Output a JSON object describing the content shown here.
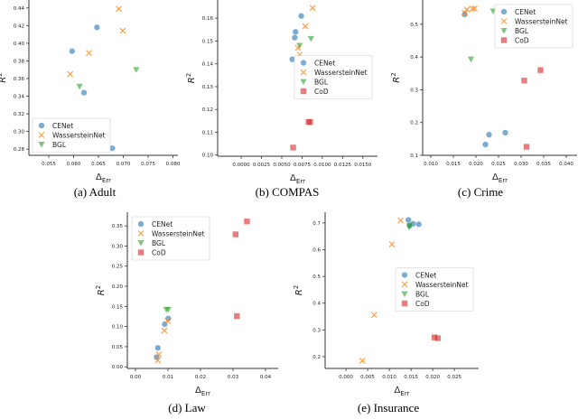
{
  "legend_names": {
    "CENet": "CENet",
    "WassersteinNet": "WassersteinNet",
    "BGL": "BGL",
    "CoD": "CoD"
  },
  "colors": {
    "CENet": "#1f77b4",
    "WassersteinNet": "#ff7f0e",
    "BGL": "#2ca02c",
    "CoD": "#d62728"
  },
  "markers": {
    "CENet": "circle",
    "WassersteinNet": "x",
    "BGL": "triangle-down",
    "CoD": "square"
  },
  "chart_data": [
    {
      "type": "scatter",
      "caption": "(a) Adult",
      "xlabel_main": "Δ",
      "xlabel_sub": "Err",
      "ylabel_main": "R",
      "ylabel_sup": "2",
      "xlim": [
        0.051,
        0.081
      ],
      "ylim": [
        0.273,
        0.449
      ],
      "xticks": [
        "0.055",
        "0.060",
        "0.065",
        "0.070",
        "0.075",
        "0.080"
      ],
      "yticks": [
        "0.28",
        "0.30",
        "0.32",
        "0.34",
        "0.36",
        "0.38",
        "0.40",
        "0.42",
        "0.44"
      ],
      "legend": "lower-left",
      "grid": false,
      "series": [
        {
          "name": "CENet",
          "points": [
            [
              0.0647,
              0.418
            ],
            [
              0.0597,
              0.391
            ],
            [
              0.0621,
              0.344
            ],
            [
              0.0678,
              0.281
            ]
          ]
        },
        {
          "name": "WassersteinNet",
          "points": [
            [
              0.0691,
              0.439
            ],
            [
              0.0699,
              0.414
            ],
            [
              0.0631,
              0.389
            ],
            [
              0.0593,
              0.365
            ]
          ]
        },
        {
          "name": "BGL",
          "points": [
            [
              0.0726,
              0.37
            ],
            [
              0.0612,
              0.351
            ]
          ]
        }
      ]
    },
    {
      "type": "scatter",
      "caption": "(b) COMPAS",
      "xlabel_main": "Δ",
      "xlabel_sub": "Err",
      "ylabel_main": "R",
      "ylabel_sup": "2",
      "xlim": [
        -0.0029,
        0.0168
      ],
      "ylim": [
        0.0995,
        0.168
      ],
      "xticks": [
        "0.0000",
        "0.0025",
        "0.0050",
        "0.0075",
        "0.0100",
        "0.0125",
        "0.0150"
      ],
      "yticks": [
        "0.10",
        "0.11",
        "0.12",
        "0.13",
        "0.14",
        "0.15",
        "0.16"
      ],
      "legend": "center-right",
      "grid": false,
      "series": [
        {
          "name": "CENet",
          "points": [
            [
              0.0074,
              0.161
            ],
            [
              0.0067,
              0.154
            ],
            [
              0.0066,
              0.1515
            ],
            [
              0.0063,
              0.142
            ]
          ]
        },
        {
          "name": "WassersteinNet",
          "points": [
            [
              0.0088,
              0.1645
            ],
            [
              0.0079,
              0.1565
            ],
            [
              0.007,
              0.147
            ],
            [
              0.0072,
              0.144
            ]
          ]
        },
        {
          "name": "BGL",
          "points": [
            [
              0.0086,
              0.151
            ],
            [
              0.0072,
              0.148
            ]
          ]
        },
        {
          "name": "CoD",
          "points": [
            [
              0.0085,
              0.1145
            ],
            [
              0.0083,
              0.1145
            ],
            [
              0.0064,
              0.1033
            ]
          ]
        }
      ]
    },
    {
      "type": "scatter",
      "caption": "(c) Crime",
      "xlabel_main": "Δ",
      "xlabel_sub": "Err",
      "ylabel_main": "R",
      "ylabel_sup": "2",
      "xlim": [
        0.0082,
        0.0424
      ],
      "ylim": [
        0.1,
        0.574
      ],
      "xticks": [
        "0.010",
        "0.015",
        "0.020",
        "0.025",
        "0.030",
        "0.035",
        "0.040"
      ],
      "yticks": [
        "0.1",
        "0.2",
        "0.3",
        "0.4",
        "0.5"
      ],
      "legend": "upper-right",
      "grid": false,
      "series": [
        {
          "name": "CENet",
          "points": [
            [
              0.0175,
              0.53
            ],
            [
              0.0221,
              0.133
            ],
            [
              0.0229,
              0.163
            ],
            [
              0.0265,
              0.169
            ]
          ]
        },
        {
          "name": "WassersteinNet",
          "points": [
            [
              0.0175,
              0.535
            ],
            [
              0.018,
              0.545
            ],
            [
              0.0192,
              0.547
            ],
            [
              0.0197,
              0.548
            ]
          ]
        },
        {
          "name": "BGL",
          "points": [
            [
              0.0238,
              0.54
            ],
            [
              0.0189,
              0.393
            ]
          ]
        },
        {
          "name": "CoD",
          "points": [
            [
              0.0343,
              0.36
            ],
            [
              0.0307,
              0.328
            ],
            [
              0.0312,
              0.126
            ]
          ]
        }
      ]
    },
    {
      "type": "scatter",
      "caption": "(d) Law",
      "xlabel_main": "Δ",
      "xlabel_sub": "Err",
      "ylabel_main": "R",
      "ylabel_sup": "2",
      "xlim": [
        -0.0025,
        0.0439
      ],
      "ylim": [
        -0.004,
        0.384
      ],
      "xticks": [
        "0.00",
        "0.01",
        "0.02",
        "0.03",
        "0.04"
      ],
      "yticks": [
        "0.00",
        "0.05",
        "0.10",
        "0.15",
        "0.20",
        "0.25",
        "0.30",
        "0.35"
      ],
      "legend": "upper-left",
      "grid": false,
      "series": [
        {
          "name": "CENet",
          "points": [
            [
              0.0069,
              0.047
            ],
            [
              0.0065,
              0.024
            ],
            [
              0.009,
              0.106
            ],
            [
              0.0101,
              0.12
            ]
          ]
        },
        {
          "name": "WassersteinNet",
          "points": [
            [
              0.0072,
              0.031
            ],
            [
              0.0069,
              0.016
            ],
            [
              0.0089,
              0.09
            ],
            [
              0.0099,
              0.114
            ]
          ]
        },
        {
          "name": "BGL",
          "points": [
            [
              0.0095,
              0.142
            ],
            [
              0.0101,
              0.142
            ]
          ]
        },
        {
          "name": "CoD",
          "points": [
            [
              0.0343,
              0.361
            ],
            [
              0.0308,
              0.329
            ],
            [
              0.0312,
              0.126
            ]
          ]
        }
      ]
    },
    {
      "type": "scatter",
      "caption": "(e) Insurance",
      "xlabel_main": "Δ",
      "xlabel_sub": "Err",
      "ylabel_main": "R",
      "ylabel_sup": "2",
      "xlim": [
        -0.0048,
        0.0306
      ],
      "ylim": [
        0.156,
        0.74
      ],
      "xticks": [
        "0.000",
        "0.005",
        "0.010",
        "0.015",
        "0.020",
        "0.025"
      ],
      "yticks": [
        "0.2",
        "0.3",
        "0.4",
        "0.5",
        "0.6",
        "0.7"
      ],
      "legend": "center-right",
      "grid": false,
      "series": [
        {
          "name": "CENet",
          "points": [
            [
              0.0144,
              0.711
            ],
            [
              0.0155,
              0.697
            ],
            [
              0.0168,
              0.695
            ],
            [
              0.0147,
              0.69
            ]
          ]
        },
        {
          "name": "WassersteinNet",
          "points": [
            [
              0.0126,
              0.709
            ],
            [
              0.0106,
              0.62
            ],
            [
              0.0065,
              0.356
            ],
            [
              0.0038,
              0.185
            ]
          ]
        },
        {
          "name": "BGL",
          "points": [
            [
              0.0146,
              0.684
            ],
            [
              0.0147,
              0.69
            ]
          ]
        },
        {
          "name": "CoD",
          "points": [
            [
              0.0204,
              0.272
            ],
            [
              0.0212,
              0.269
            ]
          ]
        }
      ]
    }
  ]
}
